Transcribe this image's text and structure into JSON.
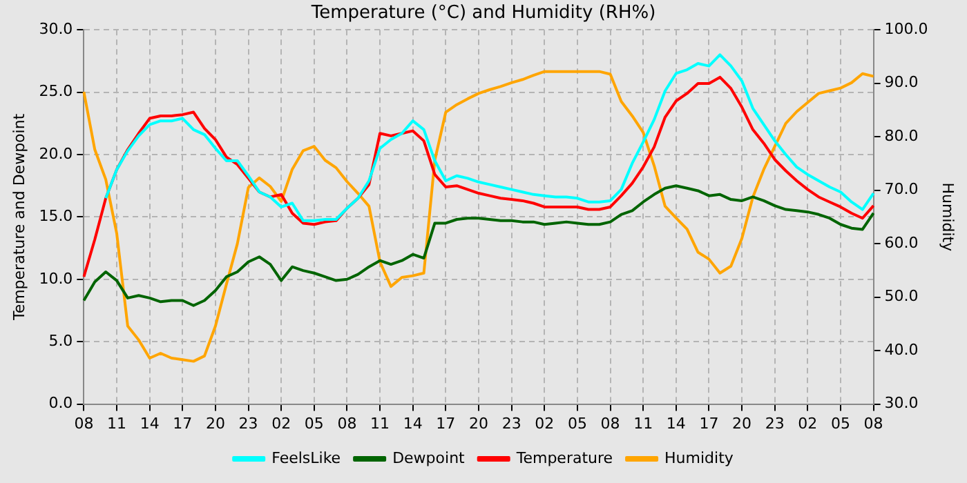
{
  "chart_data": {
    "type": "line",
    "title": "Temperature (°C) and Humidity (RH%)",
    "ylabel": "Temperature and Dewpoint",
    "y2label": "Humidity",
    "categories": [
      "08",
      null,
      null,
      "11",
      null,
      null,
      "14",
      null,
      null,
      "17",
      null,
      null,
      "20",
      null,
      null,
      "23",
      null,
      null,
      "02",
      null,
      null,
      "05",
      null,
      null,
      "08",
      null,
      null,
      "11",
      null,
      null,
      "14",
      null,
      null,
      "17",
      null,
      null,
      "20",
      null,
      null,
      "23",
      null,
      null,
      "02",
      null,
      null,
      "05",
      null,
      null,
      "08",
      null,
      null,
      "11",
      null,
      null,
      "14",
      null,
      null,
      "17",
      null,
      null,
      "20",
      null,
      null,
      "23",
      null,
      null,
      "02",
      null,
      null,
      "05",
      null,
      null,
      "08"
    ],
    "ylim": [
      0,
      30
    ],
    "yticks": [
      {
        "value": 0,
        "label": "0.0"
      },
      {
        "value": 5,
        "label": "5.0"
      },
      {
        "value": 10,
        "label": "10.0"
      },
      {
        "value": 15,
        "label": "15.0"
      },
      {
        "value": 20,
        "label": "20.0"
      },
      {
        "value": 25,
        "label": "25.0"
      },
      {
        "value": 30,
        "label": "30.0"
      }
    ],
    "y2lim": [
      30,
      100
    ],
    "y2ticks": [
      {
        "value": 30,
        "label": "30.0"
      },
      {
        "value": 40,
        "label": "40.0"
      },
      {
        "value": 50,
        "label": "50.0"
      },
      {
        "value": 60,
        "label": "60.0"
      },
      {
        "value": 70,
        "label": "70.0"
      },
      {
        "value": 80,
        "label": "80.0"
      },
      {
        "value": 90,
        "label": "90.0"
      },
      {
        "value": 100,
        "label": "100.0"
      }
    ],
    "grid": true,
    "legend": "bottom",
    "line_style": "solid",
    "marker": "none",
    "series": [
      {
        "name": "FeelsLike",
        "color": "#00ffff",
        "values": [
          null,
          null,
          16.5,
          18.8,
          20.3,
          21.5,
          22.4,
          22.7,
          22.7,
          22.9,
          22.0,
          21.6,
          20.5,
          19.5,
          19.5,
          18.3,
          17.0,
          16.6,
          15.8,
          16.1,
          14.7,
          14.7,
          14.8,
          14.8,
          15.7,
          16.5,
          17.9,
          20.5,
          21.2,
          21.7,
          22.7,
          22.0,
          19.5,
          17.9,
          18.3,
          18.1,
          17.8,
          17.6,
          17.4,
          17.2,
          17.0,
          16.8,
          16.7,
          16.6,
          16.6,
          16.5,
          16.2,
          16.2,
          16.3,
          17.2,
          19.3,
          21.0,
          22.8,
          25.1,
          26.5,
          26.8,
          27.3,
          27.1,
          28.0,
          27.1,
          25.9,
          23.7,
          22.4,
          21.1,
          20.0,
          19.0,
          18.4,
          17.9,
          17.4,
          17.0,
          16.2,
          15.6,
          16.9
        ]
      },
      {
        "name": "Dewpoint",
        "color": "#006400",
        "values": [
          8.3,
          9.8,
          10.6,
          9.9,
          8.5,
          8.7,
          8.5,
          8.2,
          8.3,
          8.3,
          7.9,
          8.3,
          9.1,
          10.2,
          10.6,
          11.4,
          11.8,
          11.2,
          9.9,
          11.0,
          10.7,
          10.5,
          10.2,
          9.9,
          10.0,
          10.4,
          11.0,
          11.5,
          11.2,
          11.5,
          12.0,
          11.7,
          14.5,
          14.5,
          14.8,
          14.9,
          14.9,
          14.8,
          14.7,
          14.7,
          14.6,
          14.6,
          14.4,
          14.5,
          14.6,
          14.5,
          14.4,
          14.4,
          14.6,
          15.2,
          15.5,
          16.2,
          16.8,
          17.3,
          17.5,
          17.3,
          17.1,
          16.7,
          16.8,
          16.4,
          16.3,
          16.6,
          16.3,
          15.9,
          15.6,
          15.5,
          15.4,
          15.2,
          14.9,
          14.4,
          14.1,
          14.0,
          15.3
        ]
      },
      {
        "name": "Temperature",
        "color": "#ff0000",
        "values": [
          10.2,
          13.2,
          16.5,
          18.8,
          20.4,
          21.7,
          22.9,
          23.1,
          23.1,
          23.2,
          23.4,
          22.1,
          21.2,
          19.8,
          19.2,
          18.1,
          17.0,
          16.6,
          16.8,
          15.3,
          14.5,
          14.4,
          14.6,
          14.7,
          15.7,
          16.5,
          17.6,
          21.7,
          21.5,
          21.7,
          21.9,
          21.1,
          18.4,
          17.4,
          17.5,
          17.2,
          16.9,
          16.7,
          16.5,
          16.4,
          16.3,
          16.1,
          15.8,
          15.8,
          15.8,
          15.8,
          15.6,
          15.6,
          15.8,
          16.7,
          17.7,
          19.0,
          20.6,
          23.0,
          24.3,
          24.9,
          25.7,
          25.7,
          26.2,
          25.3,
          23.8,
          22.0,
          20.9,
          19.6,
          18.7,
          17.9,
          17.2,
          16.6,
          16.2,
          15.8,
          15.3,
          14.9,
          15.9
        ]
      },
      {
        "name": "Humidity",
        "color": "#ffa500",
        "axis": "y2",
        "values": [
          88.4,
          77.6,
          72,
          61.9,
          44.6,
          42,
          38.6,
          39.5,
          38.6,
          38.3,
          38.0,
          39.0,
          44.6,
          52.4,
          60,
          70.5,
          72.3,
          70.7,
          67.9,
          73.9,
          77.4,
          78.2,
          75.6,
          74.2,
          71.6,
          69.4,
          67,
          56.6,
          52,
          53.7,
          54,
          54.5,
          75.6,
          84.6,
          86,
          87.1,
          88.1,
          88.8,
          89.4,
          90.1,
          90.7,
          91.5,
          92.2,
          92.2,
          92.2,
          92.2,
          92.2,
          92.2,
          91.7,
          86.6,
          83.9,
          80.8,
          74.6,
          67,
          64.8,
          62.7,
          58.4,
          57.1,
          54.5,
          55.8,
          61,
          68.7,
          73.9,
          78.2,
          82.5,
          84.7,
          86.4,
          88.1,
          88.6,
          89.1,
          90.1,
          91.8,
          91.3
        ]
      }
    ]
  }
}
